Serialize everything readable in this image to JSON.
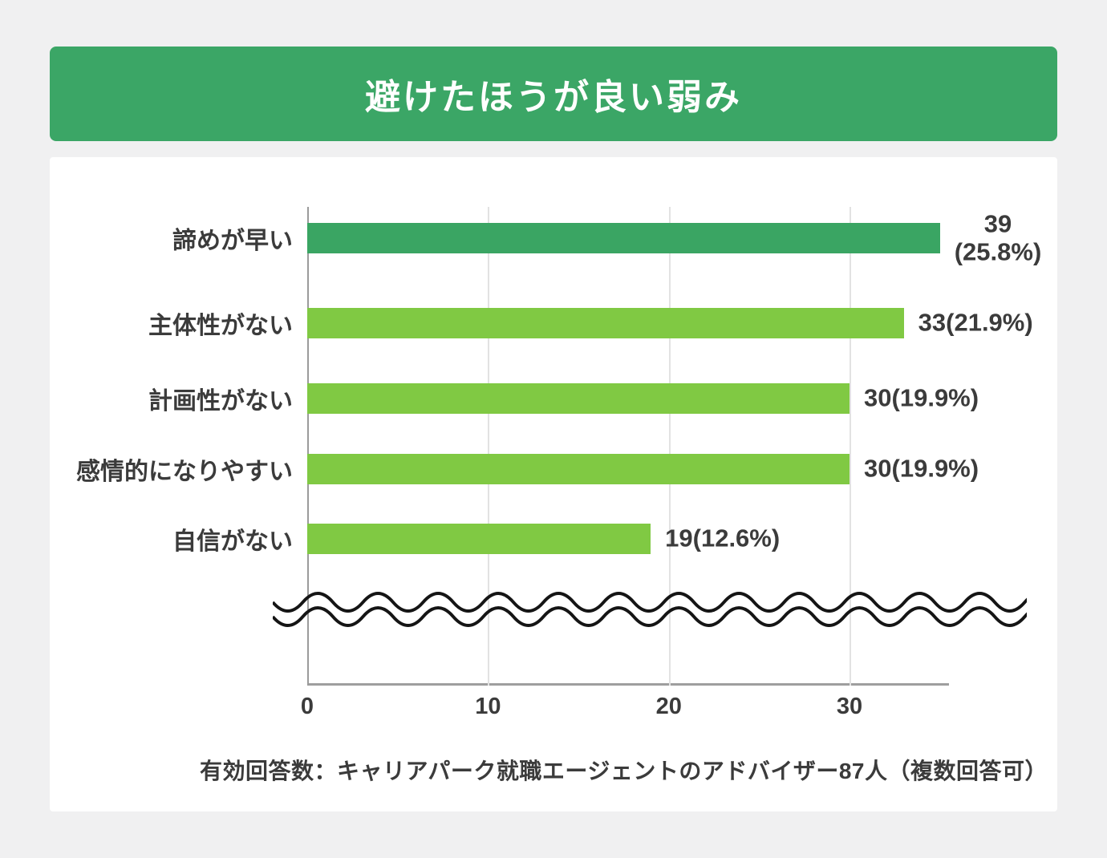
{
  "title": "避けたほうが良い弱み",
  "footer": "有効回答数：キャリアパーク就職エージェントのアドバイザー87人（複数回答可）",
  "colors": {
    "background": "#F0F0F1",
    "card": "#FFFFFF",
    "banner_green": "#3BA666",
    "bar_dark_green": "#3AA563",
    "bar_light_green": "#80C943",
    "text": "#3B3B3B",
    "gridline": "#E2E2E2",
    "axis": "#9E9E9E",
    "wave": "#151515"
  },
  "chart_data": {
    "type": "bar",
    "orientation": "horizontal",
    "title": "避けたほうが良い弱み",
    "categories": [
      "諦めが早い",
      "主体性がない",
      "計画性がない",
      "感情的になりやすい",
      "自信がない"
    ],
    "values": [
      39,
      33,
      30,
      30,
      19
    ],
    "percentages": [
      25.8,
      21.9,
      19.9,
      19.9,
      12.6
    ],
    "data_labels": [
      "39\n(25.8%)",
      "33(21.9%)",
      "30(19.9%)",
      "30(19.9%)",
      "19(12.6%)"
    ],
    "bar_colors": [
      "#3AA563",
      "#80C943",
      "#80C943",
      "#80C943",
      "#80C943"
    ],
    "x_ticks": [
      0,
      10,
      20,
      30
    ],
    "xlim": [
      0,
      35.5
    ],
    "bar_display_cap": 35,
    "grid": true,
    "legend": false,
    "axis_break_wave": true,
    "total_respondents": 87,
    "source_note": "有効回答数：キャリアパーク就職エージェントのアドバイザー87人（複数回答可）"
  }
}
